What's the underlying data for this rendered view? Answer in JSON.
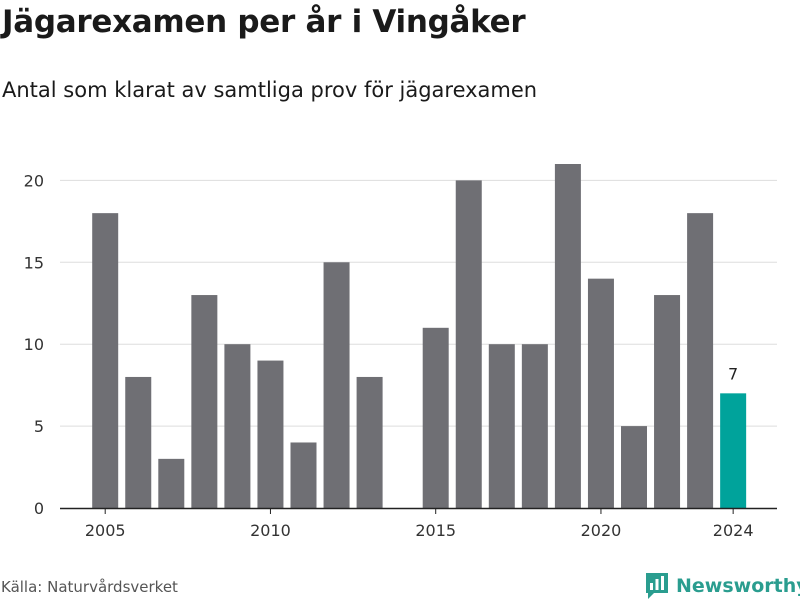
{
  "title": "Jägarexamen per år i Vingåker",
  "subtitle": "Antal som klarat av samtliga prov för jägarexamen",
  "source": "Källa: Naturvårdsverket",
  "brand": "Newsworthy",
  "colors": {
    "bar": "#6f6f74",
    "highlight": "#00a39b",
    "grid": "#dddddd",
    "brand": "#2a9d8f"
  },
  "icons": {
    "brand_logo": "bar-chart-speech-bubble-icon"
  },
  "chart_data": {
    "type": "bar",
    "title": "Jägarexamen per år i Vingåker",
    "subtitle": "Antal som klarat av samtliga prov för jägarexamen",
    "xlabel": "",
    "ylabel": "",
    "categories": [
      2005,
      2006,
      2007,
      2008,
      2009,
      2010,
      2011,
      2012,
      2013,
      2014,
      2015,
      2016,
      2017,
      2018,
      2019,
      2020,
      2021,
      2022,
      2023,
      2024
    ],
    "values": [
      18,
      8,
      3,
      13,
      10,
      9,
      4,
      15,
      8,
      0,
      11,
      20,
      10,
      10,
      21,
      14,
      5,
      13,
      18,
      7
    ],
    "highlight": {
      "category": 2024,
      "label": "7"
    },
    "x_ticks": [
      "2005",
      "2010",
      "2015",
      "2020",
      "2024"
    ],
    "y_ticks": [
      0,
      5,
      10,
      15,
      20
    ],
    "ylim": [
      0,
      21
    ],
    "grid": true,
    "legend": "none"
  }
}
